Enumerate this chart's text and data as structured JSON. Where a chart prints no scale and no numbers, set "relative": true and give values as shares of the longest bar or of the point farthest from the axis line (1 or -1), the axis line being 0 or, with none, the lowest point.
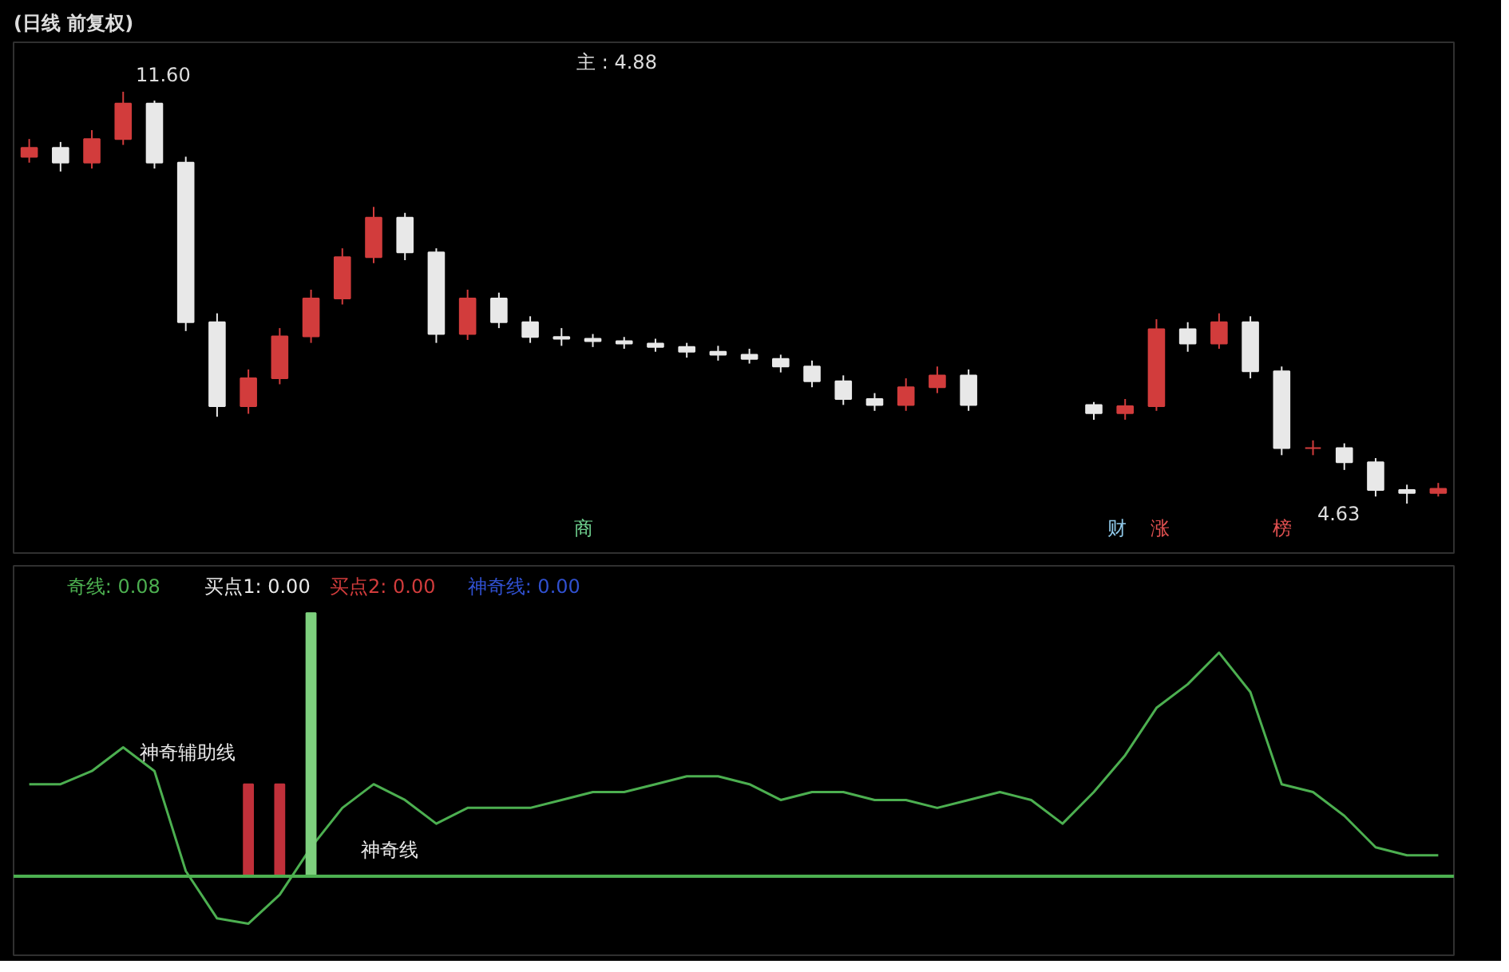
{
  "chart_data": [
    {
      "type": "candlestick",
      "title": "(日线 前复权)",
      "categories": [
        null,
        null,
        null,
        null,
        null,
        null,
        null,
        null,
        null,
        null,
        null,
        null,
        null,
        null,
        null,
        null,
        null,
        null,
        null,
        null,
        null,
        null,
        null,
        null,
        null,
        null,
        null,
        null,
        null,
        null,
        null,
        null,
        null,
        null,
        null,
        null,
        null,
        null,
        null,
        null,
        null,
        null,
        null,
        null,
        null,
        null
      ],
      "ohlc": [
        [
          10.5,
          10.8,
          10.4,
          10.65
        ],
        [
          10.65,
          10.75,
          10.25,
          10.4
        ],
        [
          10.4,
          10.95,
          10.3,
          10.8
        ],
        [
          10.8,
          11.6,
          10.7,
          11.4
        ],
        [
          11.4,
          11.45,
          10.3,
          10.4
        ],
        [
          10.4,
          10.5,
          7.55,
          7.7
        ],
        [
          7.7,
          7.85,
          6.1,
          6.28
        ],
        [
          6.28,
          6.9,
          6.15,
          6.75
        ],
        [
          6.75,
          7.6,
          6.65,
          7.46
        ],
        [
          7.46,
          8.25,
          7.35,
          8.1
        ],
        [
          8.1,
          8.95,
          8.0,
          8.8
        ],
        [
          8.8,
          9.65,
          8.7,
          9.47
        ],
        [
          9.47,
          9.55,
          8.75,
          8.88
        ],
        [
          8.88,
          8.95,
          7.35,
          7.5
        ],
        [
          7.5,
          8.25,
          7.4,
          8.1
        ],
        [
          8.1,
          8.2,
          7.6,
          7.7
        ],
        [
          7.7,
          7.8,
          7.35,
          7.45
        ],
        [
          7.45,
          7.6,
          7.3,
          7.42
        ],
        [
          7.42,
          7.5,
          7.28,
          7.38
        ],
        [
          7.38,
          7.45,
          7.25,
          7.34
        ],
        [
          7.34,
          7.42,
          7.2,
          7.28
        ],
        [
          7.28,
          7.35,
          7.1,
          7.2
        ],
        [
          7.2,
          7.3,
          7.05,
          7.15
        ],
        [
          7.15,
          7.25,
          7.0,
          7.08
        ],
        [
          7.08,
          7.15,
          6.85,
          6.95
        ],
        [
          6.95,
          7.05,
          6.6,
          6.7
        ],
        [
          6.7,
          6.8,
          6.3,
          6.4
        ],
        [
          6.4,
          6.5,
          6.2,
          6.3
        ],
        [
          6.3,
          6.75,
          6.2,
          6.6
        ],
        [
          6.6,
          6.95,
          6.5,
          6.8
        ],
        [
          6.8,
          6.9,
          6.2,
          6.3
        ],
        null,
        null,
        null,
        [
          6.3,
          6.35,
          6.05,
          6.16
        ],
        [
          6.16,
          6.4,
          6.05,
          6.28
        ],
        [
          6.28,
          7.75,
          6.2,
          7.58
        ],
        [
          7.58,
          7.7,
          7.2,
          7.34
        ],
        [
          7.34,
          7.85,
          7.25,
          7.7
        ],
        [
          7.7,
          7.8,
          6.75,
          6.87
        ],
        [
          6.87,
          6.95,
          5.45,
          5.57
        ],
        [
          5.57,
          5.7,
          5.45,
          5.57
        ],
        [
          5.57,
          5.65,
          5.2,
          5.33
        ],
        [
          5.33,
          5.4,
          4.75,
          4.86
        ],
        [
          4.86,
          4.95,
          4.63,
          4.81
        ],
        [
          4.81,
          4.98,
          4.75,
          4.88
        ]
      ],
      "colors": [
        "#d23c3c",
        "#e8e8e8",
        "#d23c3c",
        "#d23c3c",
        "#e8e8e8",
        "#e8e8e8",
        "#e8e8e8",
        "#d23c3c",
        "#d23c3c",
        "#d23c3c",
        "#d23c3c",
        "#d23c3c",
        "#e8e8e8",
        "#e8e8e8",
        "#d23c3c",
        "#e8e8e8",
        "#e8e8e8",
        "#e8e8e8",
        "#e8e8e8",
        "#e8e8e8",
        "#e8e8e8",
        "#e8e8e8",
        "#e8e8e8",
        "#e8e8e8",
        "#e8e8e8",
        "#e8e8e8",
        "#e8e8e8",
        "#e8e8e8",
        "#d23c3c",
        "#d23c3c",
        "#e8e8e8",
        null,
        null,
        null,
        "#e8e8e8",
        "#d23c3c",
        "#d23c3c",
        "#e8e8e8",
        "#d23c3c",
        "#e8e8e8",
        "#e8e8e8",
        "#d23c3c",
        "#e8e8e8",
        "#e8e8e8",
        "#e8e8e8",
        "#d23c3c"
      ],
      "annotations": [
        "主 : 4.88",
        "11.60",
        "4.63",
        "商",
        "财",
        "涨",
        "榜"
      ]
    },
    {
      "type": "line",
      "relative": true,
      "categories": [
        null,
        null,
        null,
        null,
        null,
        null,
        null,
        null,
        null,
        null,
        null,
        null,
        null,
        null,
        null,
        null,
        null,
        null,
        null,
        null,
        null,
        null,
        null,
        null,
        null,
        null,
        null,
        null,
        null,
        null,
        null,
        null,
        null,
        null,
        null,
        null,
        null,
        null,
        null,
        null,
        null,
        null,
        null,
        null,
        null,
        null
      ],
      "series": [
        {
          "color": "#4caf50",
          "values": [
            0.35,
            0.35,
            0.4,
            0.49,
            0.4,
            0.02,
            -0.16,
            -0.18,
            -0.07,
            0.11,
            0.26,
            0.35,
            0.29,
            0.2,
            0.26,
            0.26,
            0.26,
            0.29,
            0.32,
            0.32,
            0.35,
            0.38,
            0.38,
            0.35,
            0.29,
            0.32,
            0.32,
            0.29,
            0.29,
            0.26,
            0.29,
            0.32,
            0.29,
            0.2,
            0.32,
            0.46,
            0.64,
            0.73,
            0.85,
            0.7,
            0.35,
            0.32,
            0.23,
            0.11,
            0.08,
            0.08
          ]
        },
        {
          "type": "bar",
          "color": "#c0303a",
          "values": [
            null,
            null,
            null,
            null,
            null,
            null,
            null,
            0.35,
            0.35,
            null,
            null,
            null,
            null,
            null,
            null,
            null,
            null,
            null,
            null,
            null,
            null,
            null,
            null,
            null,
            null,
            null,
            null,
            null,
            null,
            null,
            null,
            null,
            null,
            null,
            null,
            null,
            null,
            null,
            null,
            null,
            null,
            null,
            null,
            null,
            null,
            null
          ]
        },
        {
          "type": "bar",
          "color": "#7ed07e",
          "values": [
            null,
            null,
            null,
            null,
            null,
            null,
            null,
            null,
            null,
            1,
            null,
            null,
            null,
            null,
            null,
            null,
            null,
            null,
            null,
            null,
            null,
            null,
            null,
            null,
            null,
            null,
            null,
            null,
            null,
            null,
            null,
            null,
            null,
            null,
            null,
            null,
            null,
            null,
            null,
            null,
            null,
            null,
            null,
            null,
            null,
            null
          ]
        }
      ],
      "ref_lines": [
        {
          "axis": "y",
          "value": 0,
          "color": "#4caf50"
        }
      ],
      "annotations": [
        "奇线: 0.08",
        "买点1: 0.00",
        "买点2: 0.00",
        "神奇线: 0.00",
        "神奇辅助线",
        "神奇线"
      ]
    }
  ]
}
